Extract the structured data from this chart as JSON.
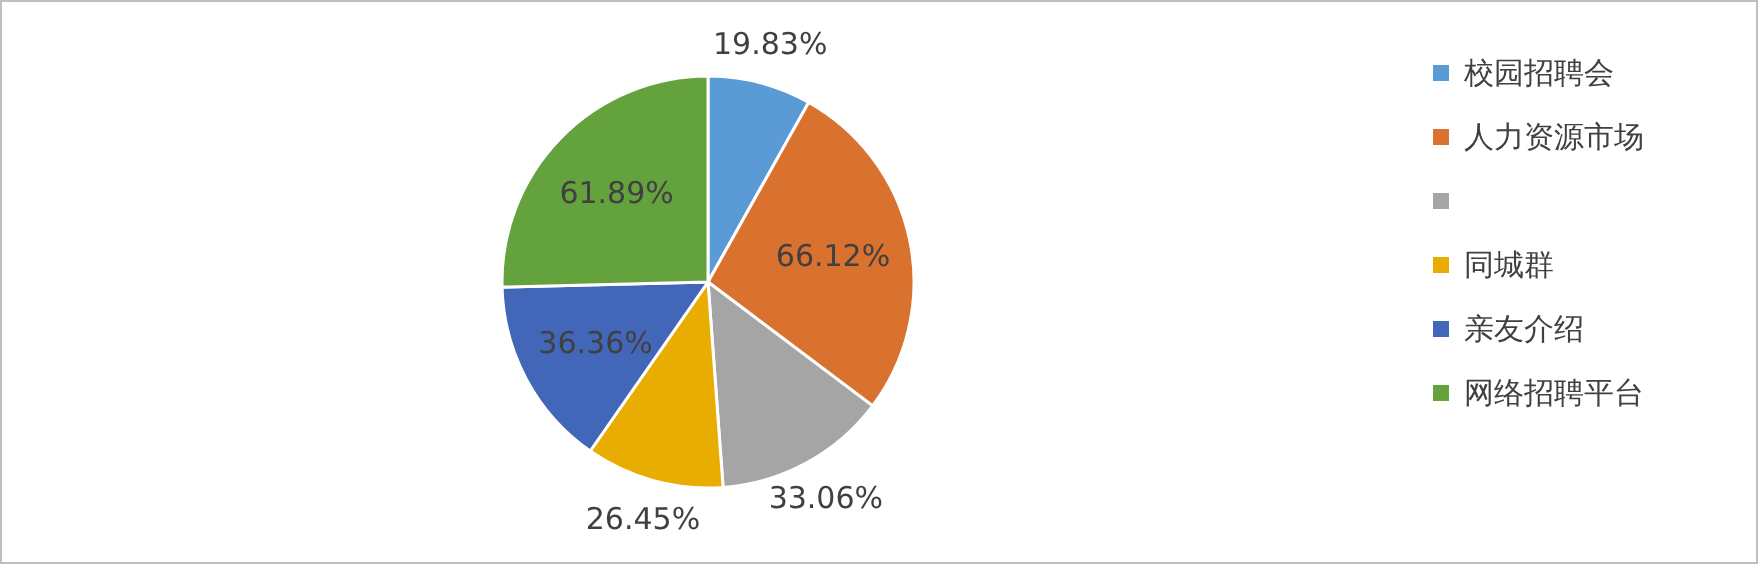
{
  "chart_data": {
    "type": "pie",
    "categories": [
      "校园招聘会",
      "人力资源市场",
      null,
      "同城群",
      "亲友介绍",
      "网络招聘平台"
    ],
    "values": [
      19.83,
      66.12,
      33.06,
      26.45,
      36.36,
      61.89
    ],
    "value_labels": [
      "19.83%",
      "66.12%",
      "33.06%",
      "26.45%",
      "36.36%",
      "61.89%"
    ],
    "colors": [
      "#5b9bd5",
      "#d9712f",
      "#a5a5a5",
      "#e8ad00",
      "#4267b8",
      "#64a23e"
    ],
    "legend": "right"
  }
}
